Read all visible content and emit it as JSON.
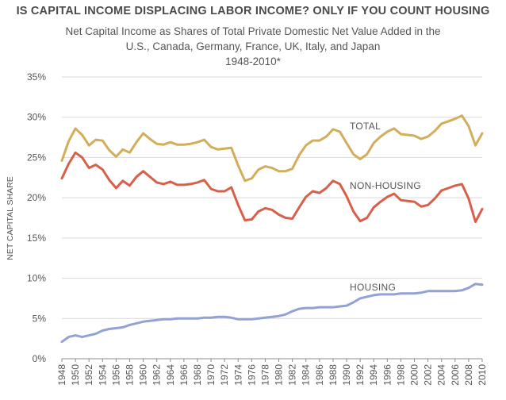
{
  "chart_data": {
    "type": "line",
    "title": "IS CAPITAL INCOME DISPLACING LABOR INCOME? ONLY IF YOU COUNT HOUSING",
    "subtitle_lines": [
      "Net Capital Income as Shares of Total Private Domestic Net Value Added in the",
      "U.S., Canada, Germany, France, UK, Italy, and Japan",
      "1948-2010*"
    ],
    "ylabel": "NET CAPITAL SHARE",
    "xlabel": "",
    "ylim": [
      0,
      35
    ],
    "xlim": [
      1948,
      2010
    ],
    "grid": true,
    "yticks": [
      "0%",
      "5%",
      "10%",
      "15%",
      "20%",
      "25%",
      "30%",
      "35%"
    ],
    "x": [
      1948,
      1949,
      1950,
      1951,
      1952,
      1953,
      1954,
      1955,
      1956,
      1957,
      1958,
      1959,
      1960,
      1961,
      1962,
      1963,
      1964,
      1965,
      1966,
      1967,
      1968,
      1969,
      1970,
      1971,
      1972,
      1973,
      1974,
      1975,
      1976,
      1977,
      1978,
      1979,
      1980,
      1981,
      1982,
      1983,
      1984,
      1985,
      1986,
      1987,
      1988,
      1989,
      1990,
      1991,
      1992,
      1993,
      1994,
      1995,
      1996,
      1997,
      1998,
      1999,
      2000,
      2001,
      2002,
      2003,
      2004,
      2005,
      2006,
      2007,
      2008,
      2009,
      2010
    ],
    "series": [
      {
        "name": "TOTAL",
        "color": "#d2ae5b",
        "values": [
          24.6,
          27.0,
          28.6,
          27.8,
          26.5,
          27.2,
          27.1,
          25.9,
          25.1,
          26.0,
          25.6,
          26.9,
          28.0,
          27.3,
          26.7,
          26.6,
          26.9,
          26.6,
          26.6,
          26.7,
          26.9,
          27.2,
          26.3,
          26.0,
          26.1,
          26.2,
          24.0,
          22.1,
          22.4,
          23.5,
          23.9,
          23.7,
          23.3,
          23.3,
          23.6,
          25.3,
          26.5,
          27.1,
          27.1,
          27.6,
          28.5,
          28.2,
          26.8,
          25.4,
          24.8,
          25.4,
          26.8,
          27.6,
          28.2,
          28.6,
          27.9,
          27.8,
          27.7,
          27.3,
          27.6,
          28.3,
          29.2,
          29.5,
          29.8,
          30.2,
          28.9,
          26.5,
          28.0
        ]
      },
      {
        "name": "NON-HOUSING",
        "color": "#d8604a",
        "values": [
          22.4,
          24.2,
          25.6,
          25.0,
          23.7,
          24.1,
          23.5,
          22.2,
          21.2,
          22.1,
          21.5,
          22.6,
          23.3,
          22.6,
          21.9,
          21.7,
          22.0,
          21.6,
          21.6,
          21.7,
          21.9,
          22.2,
          21.1,
          20.8,
          20.8,
          21.3,
          19.1,
          17.2,
          17.3,
          18.3,
          18.7,
          18.5,
          17.9,
          17.5,
          17.4,
          18.8,
          20.1,
          20.8,
          20.6,
          21.2,
          22.1,
          21.7,
          20.2,
          18.3,
          17.1,
          17.5,
          18.8,
          19.5,
          20.1,
          20.5,
          19.7,
          19.6,
          19.5,
          18.9,
          19.1,
          19.9,
          20.9,
          21.2,
          21.5,
          21.7,
          19.9,
          17.0,
          18.6
        ]
      },
      {
        "name": "HOUSING",
        "color": "#93a2d4",
        "values": [
          2.1,
          2.7,
          2.9,
          2.7,
          2.9,
          3.1,
          3.5,
          3.7,
          3.8,
          3.9,
          4.2,
          4.4,
          4.6,
          4.7,
          4.8,
          4.9,
          4.9,
          5.0,
          5.0,
          5.0,
          5.0,
          5.1,
          5.1,
          5.2,
          5.2,
          5.1,
          4.9,
          4.9,
          4.9,
          5.0,
          5.1,
          5.2,
          5.3,
          5.5,
          5.9,
          6.2,
          6.3,
          6.3,
          6.4,
          6.4,
          6.4,
          6.5,
          6.6,
          7.0,
          7.5,
          7.7,
          7.9,
          8.0,
          8.0,
          8.0,
          8.1,
          8.1,
          8.1,
          8.2,
          8.4,
          8.4,
          8.4,
          8.4,
          8.4,
          8.5,
          8.8,
          9.3,
          9.2
        ]
      }
    ],
    "xtick_labels": [
      "1948",
      "1950",
      "1952",
      "1954",
      "1956",
      "1958",
      "1960",
      "1962",
      "1964",
      "1966",
      "1968",
      "1970",
      "1972",
      "1974",
      "1976",
      "1978",
      "1980",
      "1982",
      "1984",
      "1986",
      "1988",
      "1990",
      "1992",
      "1994",
      "1996",
      "1998",
      "2000",
      "2002",
      "2004",
      "2006",
      "2008",
      "2010"
    ],
    "series_labels": [
      {
        "text": "TOTAL",
        "series": "TOTAL"
      },
      {
        "text": "NON-HOUSING",
        "series": "NON-HOUSING"
      },
      {
        "text": "HOUSING",
        "series": "HOUSING"
      }
    ],
    "colors": {
      "grid": "#d9d9d9",
      "axis": "#8c8c8c",
      "text": "#555555",
      "title": "#4a4a4a"
    }
  }
}
